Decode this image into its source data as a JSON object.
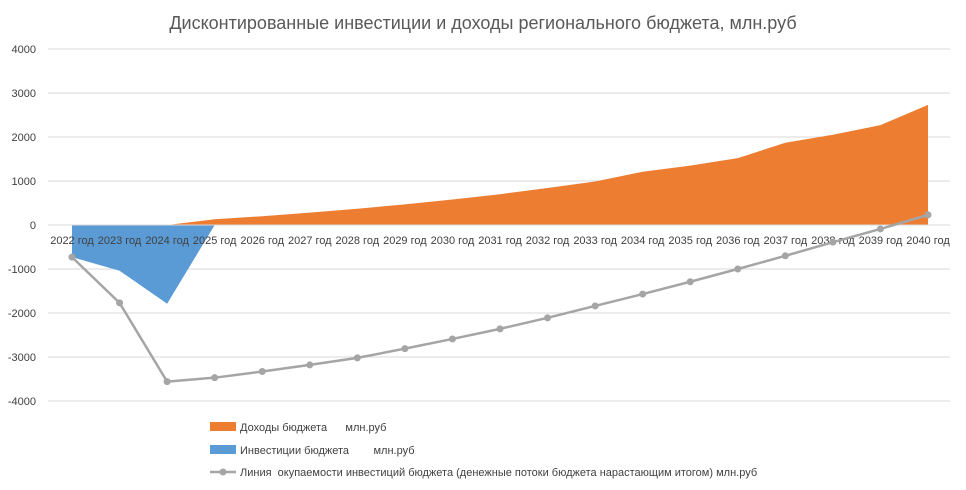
{
  "chart_data": {
    "type": "area",
    "title": "Дисконтированные инвестиции и доходы регионального бюджета, млн.руб",
    "xlabel": "",
    "ylabel": "",
    "categories": [
      "2022 год",
      "2023 год",
      "2024 год",
      "2025 год",
      "2026 год",
      "2027 год",
      "2028 год",
      "2029 год",
      "2030 год",
      "2031 год",
      "2032 год",
      "2033 год",
      "2034 год",
      "2035 год",
      "2036 год",
      "2037 год",
      "2038 год",
      "2039 год",
      "2040 год"
    ],
    "ylim": [
      -4000,
      4000
    ],
    "yticks": [
      "4000",
      "3000",
      "2000",
      "1000",
      "0",
      "-1000",
      "-2000",
      "-3000",
      "-4000"
    ],
    "grid": true,
    "legend_position": "bottom",
    "series": [
      {
        "name": "Доходы бюджета      млн.руб",
        "kind": "area",
        "color": "#ED7D31",
        "values": [
          0,
          0,
          0,
          130,
          200,
          280,
          370,
          470,
          580,
          700,
          840,
          990,
          1210,
          1350,
          1520,
          1870,
          2050,
          2270,
          2730
        ]
      },
      {
        "name": "Инвестиции бюджета        млн.руб",
        "kind": "area",
        "color": "#5B9BD5",
        "values": [
          -730,
          -1040,
          -1790,
          0,
          0,
          0,
          0,
          0,
          0,
          0,
          0,
          0,
          0,
          0,
          0,
          0,
          0,
          0,
          0
        ]
      },
      {
        "name": "Линия  окупаемости инвестиций бюджета (денежные потоки бюджета нарастающим итогом) млн.руб",
        "kind": "line",
        "color": "#A5A5A5",
        "values": [
          -730,
          -1770,
          -3560,
          -3470,
          -3330,
          -3180,
          -3020,
          -2810,
          -2590,
          -2360,
          -2110,
          -1840,
          -1570,
          -1290,
          -1000,
          -700,
          -390,
          -90,
          230
        ]
      }
    ]
  }
}
